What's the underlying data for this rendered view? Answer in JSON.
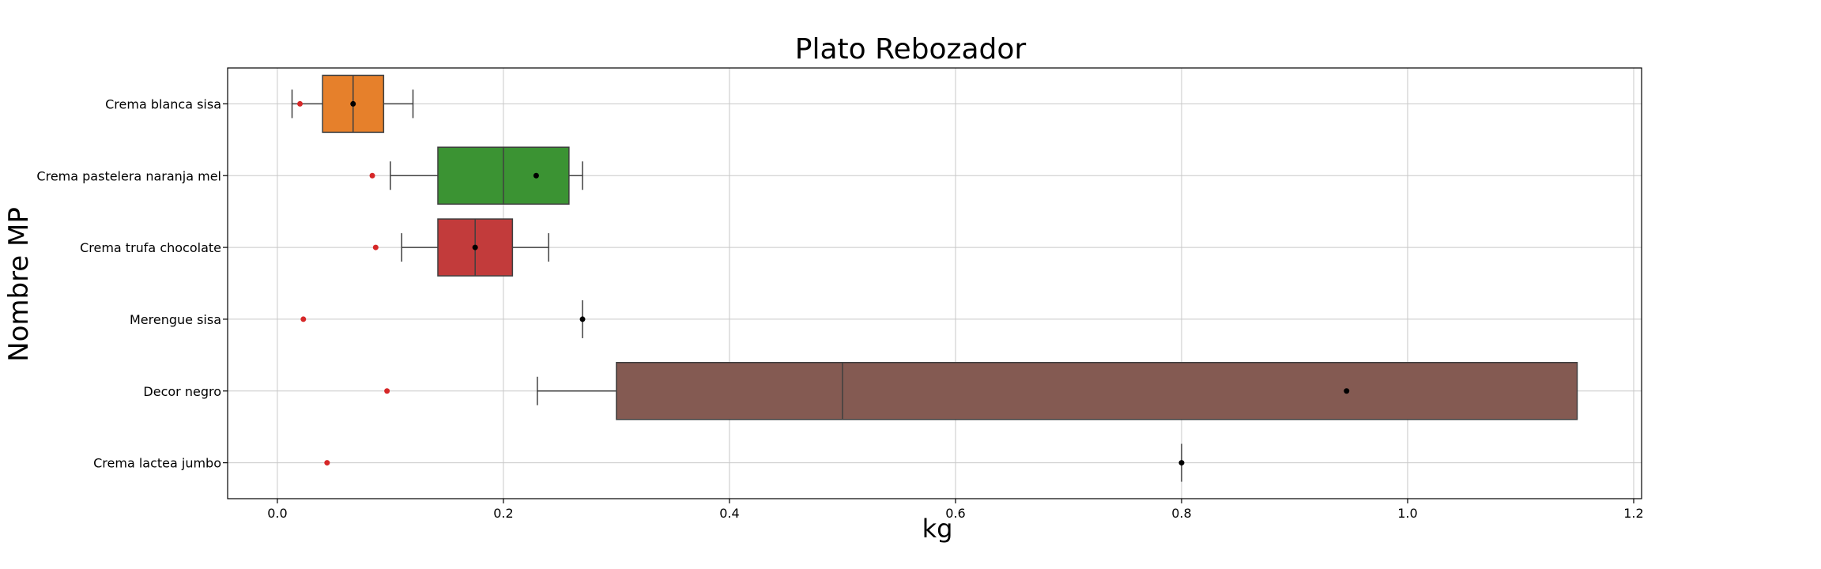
{
  "chart_data": {
    "type": "boxplot",
    "title": "Plato Rebozador",
    "xlabel": "kg",
    "ylabel": "Nombre MP",
    "xlim": [
      -0.044,
      1.207
    ],
    "x_ticks": [
      "0.0",
      "0.2",
      "0.4",
      "0.6",
      "0.8",
      "1.0",
      "1.2"
    ],
    "grid": true,
    "categories": [
      "Crema blanca sisa",
      "Crema pastelera naranja mel",
      "Crema trufa chocolate",
      "Merengue sisa",
      "Decor negro",
      "Crema lactea jumbo"
    ],
    "boxes": [
      {
        "whisker_low": 0.013,
        "q1": 0.04,
        "median": 0.067,
        "q3": 0.094,
        "whisker_high": 0.12,
        "mean": 0.067,
        "marker": 0.02,
        "color": "#e6802b"
      },
      {
        "whisker_low": 0.1,
        "q1": 0.142,
        "median": 0.2,
        "q3": 0.258,
        "whisker_high": 0.27,
        "mean": 0.229,
        "marker": 0.084,
        "color": "#3b9333"
      },
      {
        "whisker_low": 0.11,
        "q1": 0.142,
        "median": 0.175,
        "q3": 0.208,
        "whisker_high": 0.24,
        "mean": 0.175,
        "marker": 0.087,
        "color": "#c23b3b"
      },
      {
        "whisker_low": 0.27,
        "q1": 0.27,
        "median": 0.27,
        "q3": 0.27,
        "whisker_high": 0.27,
        "mean": 0.27,
        "marker": 0.023,
        "color": "#7a5048"
      },
      {
        "whisker_low": 0.23,
        "q1": 0.3,
        "median": 0.5,
        "q3": 1.15,
        "whisker_high": 1.15,
        "mean": 0.946,
        "marker": 0.097,
        "color": "#845a52"
      },
      {
        "whisker_low": 0.8,
        "q1": 0.8,
        "median": 0.8,
        "q3": 0.8,
        "whisker_high": 0.8,
        "mean": 0.8,
        "marker": 0.044,
        "color": "#9467bd"
      }
    ],
    "colors": {
      "mean_marker": "#000000",
      "extra_marker": "#d62728",
      "grid": "#c8c8c8",
      "box_edge": "#3f3f3f"
    }
  }
}
